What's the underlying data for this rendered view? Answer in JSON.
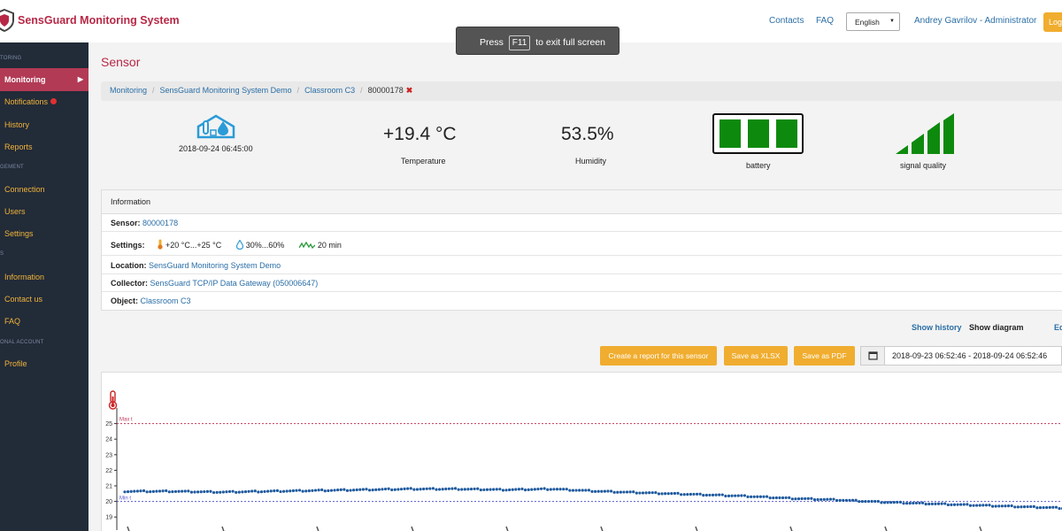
{
  "app": {
    "title": "SensGuard Monitoring System"
  },
  "header": {
    "contacts": "Contacts",
    "faq": "FAQ",
    "language": "English",
    "user": "Andrey Gavrilov - Administrator",
    "logout": "Log"
  },
  "fullscreen_toast": {
    "before": "Press",
    "key": "F11",
    "after": "to exit full screen"
  },
  "sidebar": {
    "section_monitoring": "TORING",
    "section_management": "GEMENT",
    "section_info": "S",
    "section_account": "ONAL ACCOUNT",
    "items": [
      {
        "label": "Monitoring"
      },
      {
        "label": "Notifications"
      },
      {
        "label": "History"
      },
      {
        "label": "Reports"
      },
      {
        "label": "Connection"
      },
      {
        "label": "Users"
      },
      {
        "label": "Settings"
      },
      {
        "label": "Information"
      },
      {
        "label": "Contact us"
      },
      {
        "label": "FAQ"
      },
      {
        "label": "Profile"
      }
    ]
  },
  "page": {
    "title": "Sensor"
  },
  "breadcrumb": {
    "items": [
      "Monitoring",
      "SensGuard Monitoring System Demo",
      "Classroom C3"
    ],
    "current": "80000178",
    "remove": "✖"
  },
  "sensor": {
    "timestamp": "2018-09-24 06:45:00",
    "temperature_value": "+19.4 °C",
    "temperature_label": "Temperature",
    "humidity_value": "53.5%",
    "humidity_label": "Humidity",
    "battery_label": "battery",
    "battery_level": 3,
    "battery_max": 3,
    "signal_label": "signal quality",
    "signal_level": 4,
    "signal_max": 4,
    "colors": {
      "ok": "#0d8a0d",
      "accent": "#b72846",
      "link": "#2a6ea6",
      "button": "#f0ad2f"
    }
  },
  "information": {
    "title": "Information",
    "sensor_label": "Sensor:",
    "sensor_value": "80000178",
    "settings_label": "Settings:",
    "settings_temp": "+20 °C...+25 °C",
    "settings_humidity": "30%...60%",
    "settings_interval": "20 min",
    "location_label": "Location:",
    "location_value": "SensGuard Monitoring System Demo",
    "collector_label": "Collector:",
    "collector_value": "SensGuard TCP/IP Data Gateway (050006647)",
    "object_label": "Object:",
    "object_value": "Classroom C3"
  },
  "views": {
    "history": "Show history",
    "diagram": "Show diagram",
    "edit": "Ed"
  },
  "actions": {
    "report": "Create a report for this sensor",
    "xlsx": "Save as XLSX",
    "pdf": "Save as PDF",
    "date_range": "2018-09-23 06:52:46 - 2018-09-24 06:52:46"
  },
  "chart_data": {
    "type": "scatter",
    "ylim": [
      18.5,
      26
    ],
    "yticks": [
      "19",
      "20",
      "21",
      "22",
      "23",
      "24",
      "25"
    ],
    "max_label": "Max t",
    "min_label": "Min t",
    "max_threshold": 25,
    "min_threshold": 20,
    "series": [
      {
        "x_fraction": [
          0,
          0.05,
          0.1,
          0.15,
          0.2,
          0.25,
          0.3,
          0.35,
          0.4,
          0.45,
          0.5,
          0.55,
          0.6,
          0.65,
          0.7,
          0.75,
          0.8,
          0.85,
          0.9,
          0.95,
          1.0
        ],
        "y": [
          20.65,
          20.65,
          20.6,
          20.65,
          20.7,
          20.75,
          20.8,
          20.8,
          20.75,
          20.8,
          20.65,
          20.55,
          20.45,
          20.35,
          20.2,
          20.1,
          19.95,
          19.85,
          19.75,
          19.65,
          19.55
        ]
      }
    ]
  }
}
